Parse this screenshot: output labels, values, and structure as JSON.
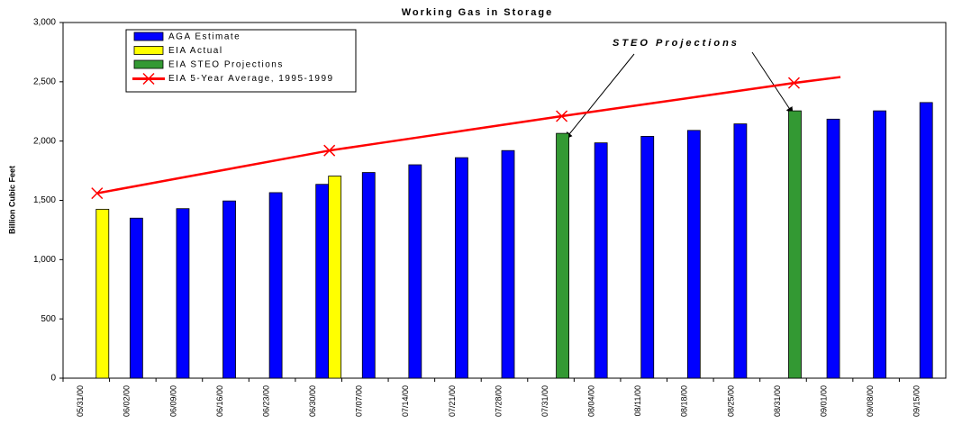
{
  "chart_data": {
    "type": "bar",
    "title": "Working Gas in Storage",
    "y_label": "Billion Cubic Feet",
    "annotation": "STEO Projections",
    "categories": [
      "05/31/00",
      "06/02/00",
      "06/09/00",
      "06/16/00",
      "06/23/00",
      "06/30/00",
      "07/07/00",
      "07/14/00",
      "07/21/00",
      "07/28/00",
      "07/31/00",
      "08/04/00",
      "08/11/00",
      "08/18/00",
      "08/25/00",
      "08/31/00",
      "09/01/00",
      "09/08/00",
      "09/15/00"
    ],
    "series": [
      {
        "name": "AGA Estimate",
        "color": "#0000ff",
        "values": [
          null,
          1350,
          1430,
          1495,
          1565,
          1635,
          1735,
          1800,
          1860,
          1920,
          null,
          1985,
          2040,
          2090,
          2145,
          null,
          2185,
          2255,
          2325
        ]
      },
      {
        "name": "EIA Actual",
        "color": "#ffff00",
        "values": [
          1425,
          null,
          null,
          null,
          null,
          1705,
          null,
          null,
          null,
          null,
          null,
          null,
          null,
          null,
          null,
          null,
          null,
          null,
          null
        ]
      },
      {
        "name": "EIA STEO Projections",
        "color": "#339933",
        "values": [
          null,
          null,
          null,
          null,
          null,
          null,
          null,
          null,
          null,
          null,
          2065,
          null,
          null,
          null,
          null,
          2255,
          null,
          null,
          null
        ]
      },
      {
        "name": "EIA 5-Year Average, 1995-1999",
        "color": "#ff0000",
        "type": "line",
        "values": [
          1560,
          1632,
          1704,
          1776,
          1848,
          1920,
          1978,
          2036,
          2094,
          2152,
          2210,
          2266,
          2322,
          2378,
          2434,
          2490,
          2540,
          null,
          null
        ],
        "marker_categories": [
          "05/31/00",
          "06/30/00",
          "07/31/00",
          "08/31/00"
        ]
      }
    ],
    "ylim": [
      0,
      3000
    ],
    "yticks": [
      0,
      500,
      {
        "value": 1000,
        "label": "1,000"
      },
      {
        "value": 1500,
        "label": "1,500"
      },
      {
        "value": 2000,
        "label": "2,000"
      },
      {
        "value": 2500,
        "label": "2,500"
      },
      {
        "value": 3000,
        "label": "3,000"
      }
    ],
    "grid": false
  }
}
